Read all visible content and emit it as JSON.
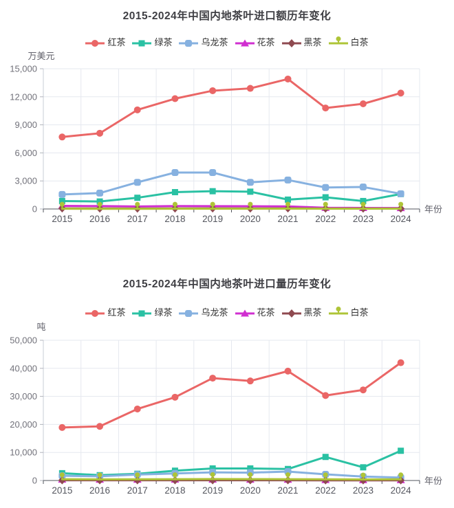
{
  "page": {
    "background": "#ffffff"
  },
  "chart_data": [
    {
      "type": "line",
      "title": "2015-2024年中国内地茶叶进口额历年变化",
      "unit_label": "万美元",
      "xlabel": "年份",
      "legend_position": "top",
      "grid": true,
      "categories": [
        "2015",
        "2016",
        "2017",
        "2018",
        "2019",
        "2020",
        "2021",
        "2022",
        "2023",
        "2024"
      ],
      "ylim": [
        0,
        15000
      ],
      "ytick_labels": [
        "0",
        "3,000",
        "6,000",
        "9,000",
        "12,000",
        "15,000"
      ],
      "series": [
        {
          "name": "红茶",
          "slug": "black-tea",
          "color": "#ea6666",
          "marker": "circle",
          "values": [
            7700,
            8100,
            10600,
            11800,
            12650,
            12900,
            13900,
            10800,
            11250,
            12400
          ]
        },
        {
          "name": "绿茶",
          "slug": "green-tea",
          "color": "#2ac1a3",
          "marker": "square",
          "values": [
            850,
            800,
            1200,
            1800,
            1900,
            1850,
            1000,
            1250,
            850,
            1600
          ]
        },
        {
          "name": "乌龙茶",
          "slug": "oolong-tea",
          "color": "#86b1e0",
          "marker": "roundRect",
          "values": [
            1550,
            1700,
            2850,
            3900,
            3900,
            2850,
            3100,
            2300,
            2350,
            1630
          ]
        },
        {
          "name": "花茶",
          "slug": "flower-tea",
          "color": "#d02fd0",
          "marker": "triangle",
          "values": [
            330,
            310,
            270,
            310,
            300,
            290,
            280,
            130,
            110,
            100
          ]
        },
        {
          "name": "黑茶",
          "slug": "dark-tea",
          "color": "#8f4a50",
          "marker": "diamond",
          "values": [
            60,
            55,
            50,
            55,
            60,
            55,
            60,
            50,
            45,
            50
          ]
        },
        {
          "name": "白茶",
          "slug": "white-tea",
          "color": "#aec437",
          "marker": "pin",
          "values": [
            25,
            20,
            20,
            25,
            30,
            30,
            35,
            30,
            25,
            30
          ]
        }
      ]
    },
    {
      "type": "line",
      "title": "2015-2024年中国内地茶叶进口量历年变化",
      "unit_label": "吨",
      "xlabel": "年份",
      "legend_position": "top",
      "grid": true,
      "categories": [
        "2015",
        "2016",
        "2017",
        "2018",
        "2019",
        "2020",
        "2021",
        "2022",
        "2023",
        "2024"
      ],
      "ylim": [
        0,
        50000
      ],
      "ytick_labels": [
        "0",
        "10,000",
        "20,000",
        "30,000",
        "40,000",
        "50,000"
      ],
      "series": [
        {
          "name": "红茶",
          "slug": "black-tea",
          "color": "#ea6666",
          "marker": "circle",
          "values": [
            18900,
            19300,
            25500,
            29700,
            36500,
            35500,
            39000,
            30300,
            32300,
            42000
          ]
        },
        {
          "name": "绿茶",
          "slug": "green-tea",
          "color": "#2ac1a3",
          "marker": "square",
          "values": [
            2600,
            1900,
            2400,
            3500,
            4300,
            4300,
            4100,
            8400,
            4700,
            10600
          ]
        },
        {
          "name": "乌龙茶",
          "slug": "oolong-tea",
          "color": "#86b1e0",
          "marker": "roundRect",
          "values": [
            1700,
            1500,
            2100,
            2500,
            2900,
            2800,
            3200,
            2200,
            1400,
            1050
          ]
        },
        {
          "name": "花茶",
          "slug": "flower-tea",
          "color": "#d02fd0",
          "marker": "triangle",
          "values": [
            350,
            320,
            300,
            330,
            340,
            320,
            300,
            180,
            160,
            150
          ]
        },
        {
          "name": "黑茶",
          "slug": "dark-tea",
          "color": "#8f4a50",
          "marker": "diamond",
          "values": [
            90,
            80,
            80,
            90,
            100,
            90,
            90,
            70,
            60,
            70
          ]
        },
        {
          "name": "白茶",
          "slug": "white-tea",
          "color": "#aec437",
          "marker": "pin",
          "values": [
            450,
            400,
            420,
            460,
            520,
            490,
            470,
            420,
            380,
            430
          ]
        }
      ]
    }
  ]
}
